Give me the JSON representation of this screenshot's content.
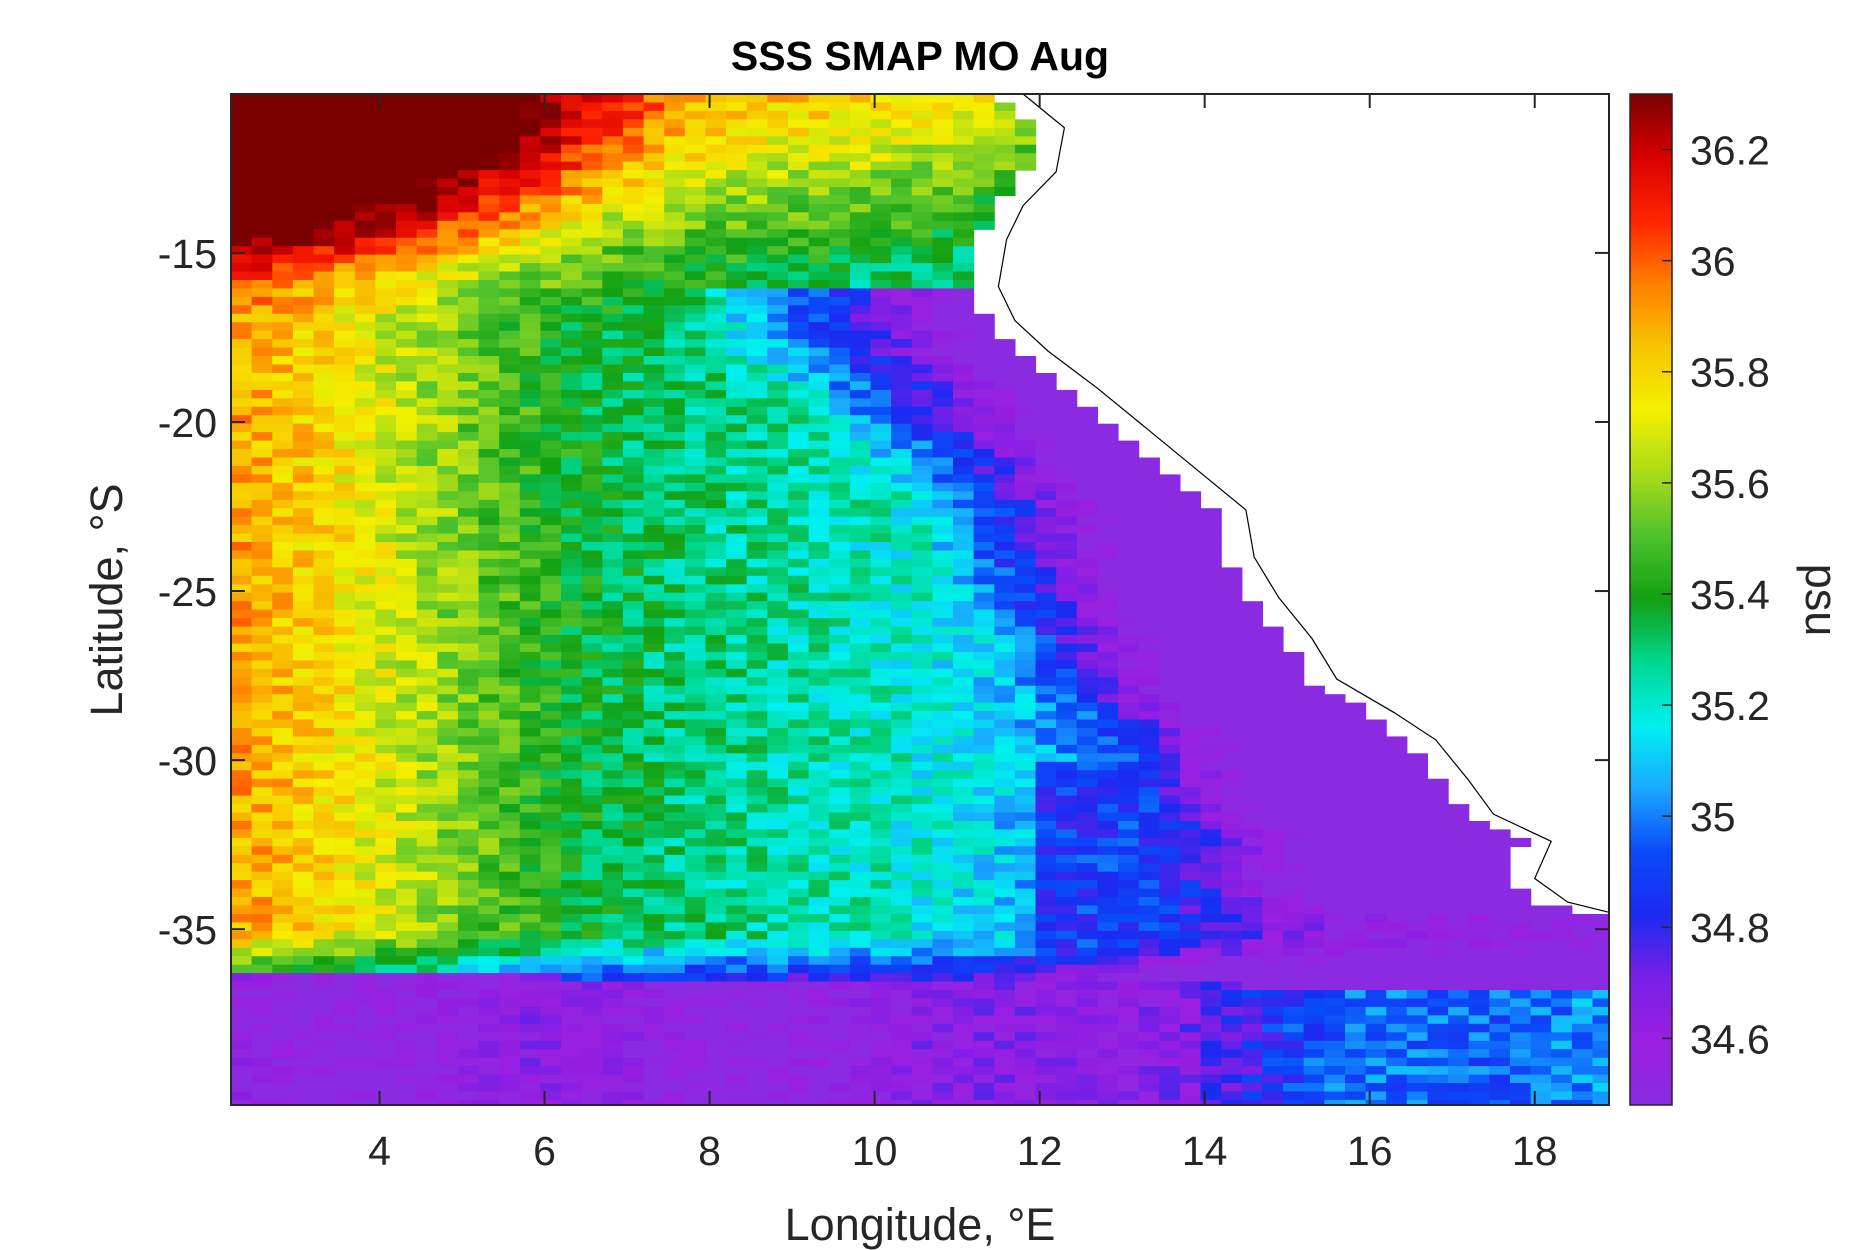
{
  "chart_data": {
    "type": "heatmap",
    "title": "SSS SMAP MO Aug",
    "xlabel": "Longitude, °E",
    "ylabel": "Latitude, °S",
    "xlim": [
      2.2,
      18.9
    ],
    "ylim": [
      -40.2,
      -10.3
    ],
    "x_ticks": [
      4,
      6,
      8,
      10,
      12,
      14,
      16,
      18
    ],
    "x_tick_labels": [
      "4",
      "6",
      "8",
      "10",
      "12",
      "14",
      "16",
      "18"
    ],
    "y_ticks": [
      -15,
      -20,
      -25,
      -30,
      -35
    ],
    "y_tick_labels": [
      "-15",
      "-20",
      "-25",
      "-30",
      "-35"
    ],
    "grid": false,
    "cell_size_deg": 0.25,
    "colorbar": {
      "label": "psu",
      "clim": [
        34.48,
        36.3
      ],
      "ticks": [
        34.6,
        34.8,
        35,
        35.2,
        35.4,
        35.6,
        35.8,
        36,
        36.2
      ],
      "tick_labels": [
        "34.6",
        "34.8",
        "35",
        "35.2",
        "35.4",
        "35.6",
        "35.8",
        "36",
        "36.2"
      ],
      "colormap": [
        "#8a2be2",
        "#9a1fe0",
        "#7a1fe6",
        "#1c2af0",
        "#0a4af8",
        "#1aa8ff",
        "#00f0f0",
        "#00d890",
        "#12a012",
        "#4ec22c",
        "#a8dc18",
        "#f4f000",
        "#f8c400",
        "#ff7e00",
        "#ff2400",
        "#d80000",
        "#7a0000"
      ]
    },
    "coastline": [
      [
        11.8,
        -10.3
      ],
      [
        12.3,
        -11.3
      ],
      [
        12.2,
        -12.6
      ],
      [
        11.8,
        -13.6
      ],
      [
        11.6,
        -14.6
      ],
      [
        11.5,
        -16.0
      ],
      [
        11.7,
        -17.0
      ],
      [
        12.1,
        -17.9
      ],
      [
        12.7,
        -19.0
      ],
      [
        13.3,
        -20.2
      ],
      [
        13.9,
        -21.4
      ],
      [
        14.5,
        -22.6
      ],
      [
        14.6,
        -24.0
      ],
      [
        14.9,
        -25.2
      ],
      [
        15.3,
        -26.4
      ],
      [
        15.6,
        -27.6
      ],
      [
        16.3,
        -28.6
      ],
      [
        16.8,
        -29.4
      ],
      [
        17.2,
        -30.6
      ],
      [
        17.5,
        -31.6
      ],
      [
        18.2,
        -32.4
      ],
      [
        18.0,
        -33.5
      ],
      [
        18.4,
        -34.2
      ],
      [
        18.9,
        -34.5
      ]
    ],
    "field_description_values": {
      "northwest_max": 36.3,
      "open_ocean_mid": 35.5,
      "coastal_upwelling": 34.75,
      "southern_band": 34.55
    }
  }
}
